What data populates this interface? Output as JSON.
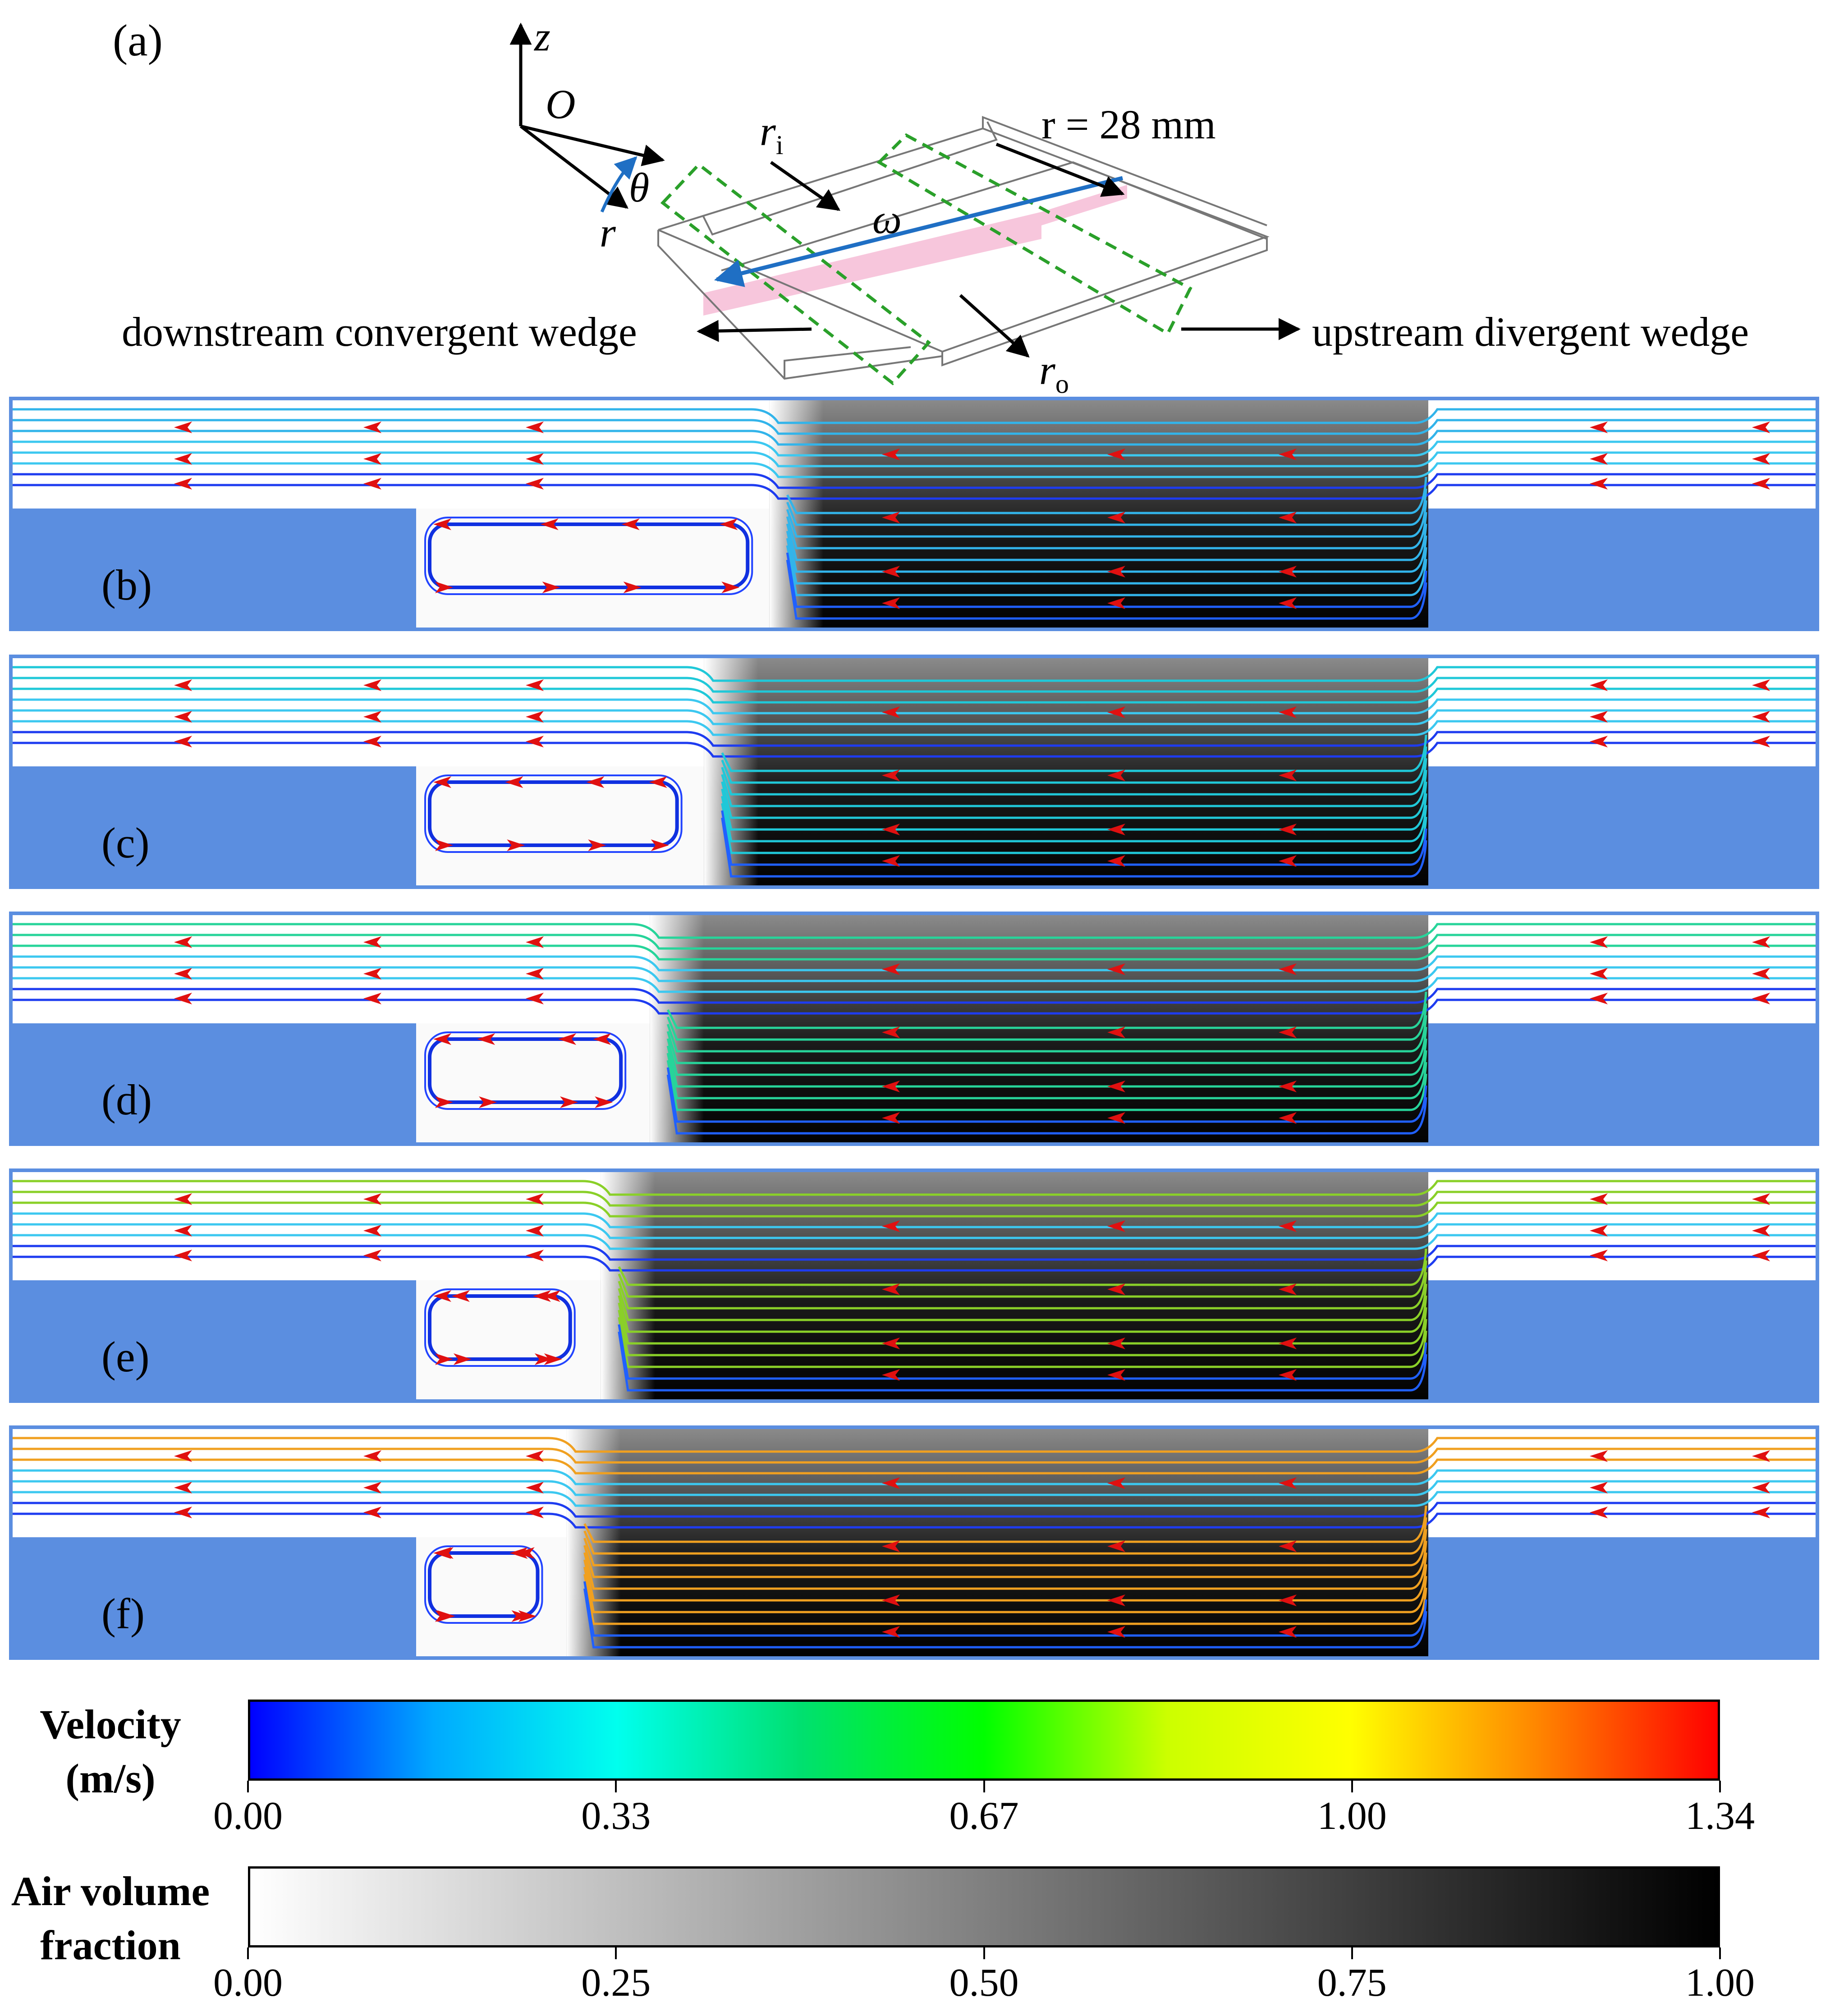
{
  "schematic": {
    "panel_label": "(a)",
    "axis_z": "z",
    "axis_origin": "O",
    "axis_r": "r",
    "axis_theta": "θ",
    "inner_radius": "r",
    "inner_radius_sub": "i",
    "outer_radius": "r",
    "outer_radius_sub": "o",
    "omega": "ω",
    "radius_label": "r = 28 mm",
    "left_caption": "downstream convergent wedge",
    "right_caption": "upstream divergent wedge",
    "colors": {
      "highlight": "#f7c6dc",
      "dashed_box": "#2aa02a",
      "rotation_arrow": "#1f6fc4"
    }
  },
  "panels": [
    {
      "label": "(b)",
      "cavity_right_frac": 0.416,
      "gas_left_frac": 0.418,
      "line_color": "#32b4ea"
    },
    {
      "label": "(c)",
      "cavity_right_frac": 0.377,
      "gas_left_frac": 0.382,
      "line_color": "#20c8d8"
    },
    {
      "label": "(d)",
      "cavity_right_frac": 0.346,
      "gas_left_frac": 0.352,
      "line_color": "#27d49a"
    },
    {
      "label": "(e)",
      "cavity_right_frac": 0.318,
      "gas_left_frac": 0.325,
      "line_color": "#8ad028"
    },
    {
      "label": "(f)",
      "cavity_right_frac": 0.3,
      "gas_left_frac": 0.306,
      "line_color": "#f0a020"
    }
  ],
  "colorbars": {
    "velocity": {
      "title_line1": "Velocity",
      "title_line2": "(m/s)",
      "ticks": [
        "0.00",
        "0.33",
        "0.67",
        "1.00",
        "1.34"
      ],
      "colors": [
        "#0000ff",
        "#00aaff",
        "#00ffee",
        "#00e070",
        "#00ff00",
        "#ccff00",
        "#ffff00",
        "#ff8800",
        "#ff0000"
      ]
    },
    "air": {
      "title_line1": "Air volume",
      "title_line2": "fraction",
      "ticks": [
        "0.00",
        "0.25",
        "0.50",
        "0.75",
        "1.00"
      ],
      "colors": [
        "#ffffff",
        "#000000"
      ]
    }
  }
}
